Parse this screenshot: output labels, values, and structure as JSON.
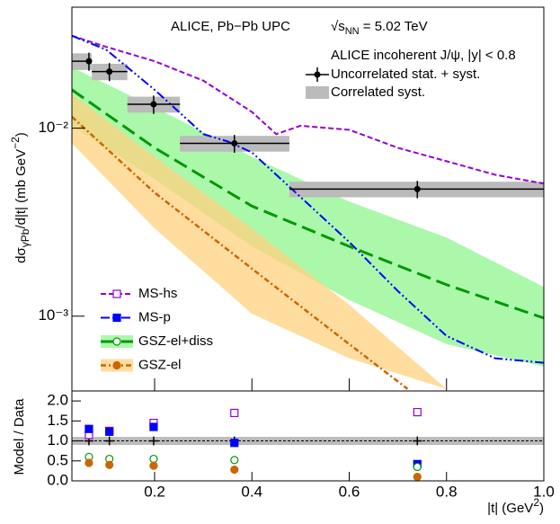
{
  "chart_data": [
    {
      "type": "line",
      "title": "ALICE, Pb−Pb UPC",
      "energy_symbol": "√s",
      "energy_sub": "NN",
      "energy_value": " = 5.02 TeV",
      "ylabel_parts": [
        "dσ",
        "γPb",
        "/d|t| (mb GeV",
        "−2",
        ")"
      ],
      "log_y": true,
      "xlim": [
        0.03,
        1.0
      ],
      "ylim": [
        0.0004,
        0.044
      ],
      "yticks": [
        {
          "value": 0.01,
          "label": "10⁻²"
        },
        {
          "value": 0.001,
          "label": "10⁻³"
        }
      ],
      "data": {
        "name": "ALICE incoherent J/ψ, |y| < 0.8",
        "stat_label": "Uncorrelated stat. + syst.",
        "syst_label": "Correlated syst.",
        "x": [
          0.065,
          0.107,
          0.198,
          0.364,
          0.74
        ],
        "x_low": [
          0.03,
          0.071,
          0.144,
          0.252,
          0.477
        ],
        "x_high": [
          0.071,
          0.144,
          0.252,
          0.477,
          1.0
        ],
        "values": [
          0.0227,
          0.02,
          0.0134,
          0.0083,
          0.00474
        ],
        "yerr": [
          0.0025,
          0.0022,
          0.0015,
          0.0009,
          0.0005
        ],
        "syst": [
          0.0023,
          0.002,
          0.0013,
          0.0008,
          0.00045
        ]
      },
      "series": [
        {
          "name": "MS-hs",
          "color": "#9400d3",
          "marker": "open-square",
          "x": [
            0.03,
            0.1,
            0.2,
            0.3,
            0.4,
            0.45,
            0.5,
            0.6,
            0.7,
            0.8,
            0.9,
            1.0
          ],
          "values": [
            0.031,
            0.0271,
            0.0227,
            0.0179,
            0.0122,
            0.0093,
            0.0103,
            0.0098,
            0.00786,
            0.00667,
            0.00565,
            0.00507
          ]
        },
        {
          "name": "MS-p",
          "color": "#0000ff",
          "marker": "filled-square",
          "x": [
            0.03,
            0.1,
            0.2,
            0.3,
            0.35,
            0.4,
            0.5,
            0.6,
            0.7,
            0.8,
            0.9,
            1.0
          ],
          "values": [
            0.031,
            0.0262,
            0.016,
            0.0093,
            0.0085,
            0.00743,
            0.0043,
            0.00248,
            0.00136,
            0.000785,
            0.000597,
            0.000565
          ]
        },
        {
          "name": "GSZ-el+diss",
          "color": "#009900",
          "band_color": "#8ff58f",
          "marker": "open-circle",
          "x": [
            0.03,
            0.2,
            0.4,
            0.6,
            0.8,
            1.0
          ],
          "values": [
            0.016,
            0.00786,
            0.00385,
            0.00235,
            0.00147,
            0.000977
          ],
          "band_x": [
            0.03,
            0.2,
            0.4,
            0.6,
            0.8,
            1.0
          ],
          "band_upper": [
            0.0211,
            0.0129,
            0.00704,
            0.00407,
            0.00262,
            0.00143
          ],
          "band_lower": [
            0.0103,
            0.00535,
            0.00235,
            0.00122,
            0.00071,
            0.00054
          ]
        },
        {
          "name": "GSZ-el",
          "color": "#cc6600",
          "band_color": "#ffd27f",
          "marker": "filled-circle",
          "x": [
            0.03,
            0.2,
            0.4,
            0.6,
            0.72
          ],
          "values": [
            0.0115,
            0.00454,
            0.00179,
            0.00071,
            0.00041
          ],
          "band_x": [
            0.03,
            0.2,
            0.4,
            0.6,
            0.8
          ],
          "band_upper": [
            0.0152,
            0.00704,
            0.00293,
            0.00115,
            0.00041
          ],
          "band_lower": [
            0.0083,
            0.00293,
            0.00103,
            0.000597,
            0.00041
          ]
        }
      ]
    },
    {
      "type": "scatter",
      "ylabel": "Model / Data",
      "xlabel_parts": [
        "|t| (GeV",
        "2",
        ")"
      ],
      "xlim": [
        0.03,
        1.0
      ],
      "ylim": [
        0,
        2.25
      ],
      "xticks": [
        0.2,
        0.4,
        0.6,
        0.8,
        {
          "value": 1.0,
          "label": "1.0"
        }
      ],
      "yticks": [
        {
          "value": 0,
          "label": "0.0"
        },
        {
          "value": 0.5,
          "label": "0.5"
        },
        {
          "value": 1,
          "label": "1.0"
        },
        {
          "value": 1.5,
          "label": "1.5"
        },
        {
          "value": 2,
          "label": "2.0"
        }
      ],
      "x": [
        0.065,
        0.107,
        0.198,
        0.364,
        0.74
      ],
      "data_values": [
        1,
        1,
        1,
        1,
        1
      ],
      "data_err": [
        0.11,
        0.11,
        0.11,
        0.11,
        0.11
      ],
      "syst_band": 0.1,
      "series": [
        {
          "color": "#9400d3",
          "marker": "open-square",
          "values": [
            1.15,
            1.25,
            1.45,
            1.7,
            1.72
          ]
        },
        {
          "color": "#0000ff",
          "marker": "filled-square",
          "values": [
            1.3,
            1.23,
            1.35,
            0.95,
            0.42
          ]
        },
        {
          "color": "#009900",
          "marker": "open-circle",
          "values": [
            0.6,
            0.55,
            0.55,
            0.52,
            0.35
          ]
        },
        {
          "color": "#cc6600",
          "marker": "filled-circle",
          "values": [
            0.45,
            0.4,
            0.38,
            0.28,
            0.1
          ]
        }
      ]
    }
  ]
}
